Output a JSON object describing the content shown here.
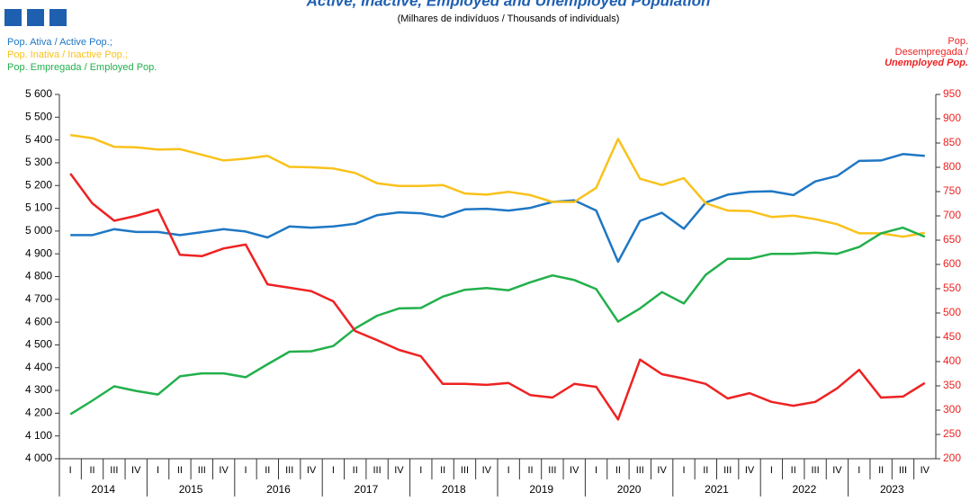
{
  "chart_data": {
    "type": "line",
    "title": "Active, Inactive, Employed and Unemployed Population",
    "subtitle": "(Milhares de indivíduos / Thousands of individuals)",
    "y2label": [
      "Pop.",
      "Desempregada /",
      "Unemployed Pop."
    ],
    "categories": [
      "I",
      "II",
      "III",
      "IV",
      "I",
      "II",
      "III",
      "IV",
      "I",
      "II",
      "III",
      "IV",
      "I",
      "II",
      "III",
      "IV",
      "I",
      "II",
      "III",
      "IV",
      "I",
      "II",
      "III",
      "IV",
      "I",
      "II",
      "III",
      "IV",
      "I",
      "II",
      "III",
      "IV",
      "I",
      "II",
      "III",
      "IV",
      "I",
      "II",
      "III",
      "IV"
    ],
    "years": [
      2014,
      2015,
      2016,
      2017,
      2018,
      2019,
      2020,
      2021,
      2022,
      2023
    ],
    "series": [
      {
        "name": "Pop. Ativa / Active Pop.;",
        "color": "#1f77c4",
        "values": [
          4982,
          4982,
          5008,
          4996,
          4996,
          4982,
          4995,
          5008,
          4998,
          4972,
          5020,
          5015,
          5020,
          5032,
          5070,
          5082,
          5078,
          5062,
          5095,
          5098,
          5090,
          5102,
          5128,
          5135,
          5090,
          4865,
          5045,
          5080,
          5010,
          5125,
          5160,
          5172,
          5175,
          5158,
          5218,
          5242,
          5308,
          5310,
          5338,
          5330
        ]
      },
      {
        "name": "Pop. Inativa / Inactive Pop.;",
        "color": "#f9c21b",
        "values": [
          5422,
          5408,
          5370,
          5368,
          5358,
          5360,
          5335,
          5310,
          5318,
          5330,
          5282,
          5280,
          5275,
          5255,
          5210,
          5198,
          5198,
          5202,
          5165,
          5160,
          5172,
          5158,
          5128,
          5128,
          5190,
          5405,
          5230,
          5202,
          5232,
          5122,
          5090,
          5088,
          5062,
          5068,
          5052,
          5030,
          4990,
          4990,
          4975,
          4992
        ]
      },
      {
        "name": "Pop. Empregada / Employed Pop.",
        "color": "#22b04c",
        "values": [
          4195,
          4255,
          4318,
          4298,
          4282,
          4362,
          4375,
          4375,
          4358,
          4415,
          4470,
          4472,
          4495,
          4572,
          4628,
          4660,
          4662,
          4712,
          4742,
          4750,
          4740,
          4775,
          4805,
          4785,
          4745,
          4602,
          4660,
          4732,
          4682,
          4808,
          4878,
          4878,
          4900,
          4900,
          4905,
          4900,
          4930,
          4990,
          5015,
          4975
        ]
      },
      {
        "name": "Pop. Desempregada / Unemployed Pop.",
        "color": "#ee2222",
        "axis": "y2",
        "values": [
          787,
          726,
          690,
          700,
          713,
          620,
          617,
          633,
          641,
          559,
          552,
          545,
          524,
          463,
          444,
          424,
          411,
          354,
          354,
          352,
          356,
          331,
          326,
          354,
          348,
          281,
          404,
          374,
          365,
          354,
          324,
          335,
          317,
          309,
          317,
          345,
          383,
          326,
          328,
          356
        ]
      }
    ],
    "ylim": [
      4000,
      5600
    ],
    "yticks": [
      {
        "value": 4000,
        "label": "4 000"
      },
      {
        "value": 4100,
        "label": "4 100"
      },
      {
        "value": 4200,
        "label": "4 200"
      },
      {
        "value": 4300,
        "label": "4 300"
      },
      {
        "value": 4400,
        "label": "4 400"
      },
      {
        "value": 4500,
        "label": "4 500"
      },
      {
        "value": 4600,
        "label": "4 600"
      },
      {
        "value": 4700,
        "label": "4 700"
      },
      {
        "value": 4800,
        "label": "4 800"
      },
      {
        "value": 4900,
        "label": "4 900"
      },
      {
        "value": 5000,
        "label": "5 000"
      },
      {
        "value": 5100,
        "label": "5 100"
      },
      {
        "value": 5200,
        "label": "5 200"
      },
      {
        "value": 5300,
        "label": "5 300"
      },
      {
        "value": 5400,
        "label": "5 400"
      },
      {
        "value": 5500,
        "label": "5 500"
      },
      {
        "value": 5600,
        "label": "5 600"
      }
    ],
    "y2lim": [
      200,
      950
    ],
    "y2ticks": [
      200,
      250,
      300,
      350,
      400,
      450,
      500,
      550,
      600,
      650,
      700,
      750,
      800,
      850,
      900,
      950
    ],
    "grid": false
  }
}
